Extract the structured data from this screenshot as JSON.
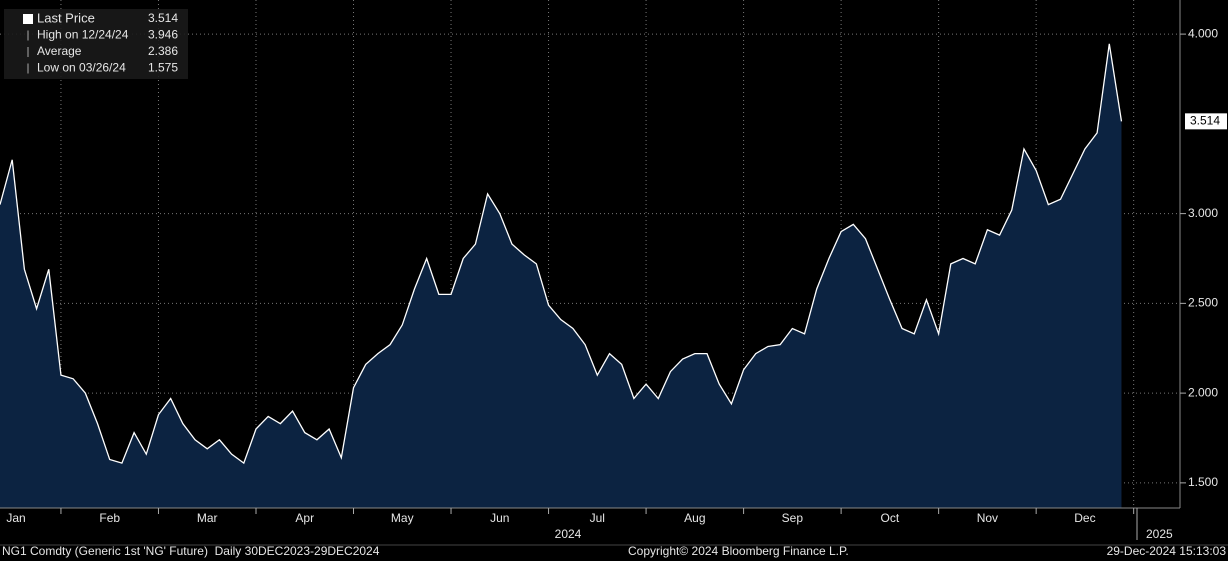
{
  "chart_data": {
    "type": "area",
    "series": [
      {
        "name": "Last Price",
        "color": "#ffffff",
        "fill": "#0c2341",
        "values": [
          3.05,
          3.3,
          2.69,
          2.47,
          2.69,
          2.1,
          2.08,
          2.0,
          1.83,
          1.63,
          1.61,
          1.78,
          1.66,
          1.88,
          1.97,
          1.83,
          1.74,
          1.69,
          1.74,
          1.66,
          1.61,
          1.8,
          1.87,
          1.83,
          1.9,
          1.78,
          1.74,
          1.8,
          1.64,
          2.03,
          2.16,
          2.22,
          2.27,
          2.38,
          2.58,
          2.75,
          2.55,
          2.55,
          2.75,
          2.83,
          3.11,
          3.0,
          2.83,
          2.77,
          2.72,
          2.49,
          2.41,
          2.36,
          2.27,
          2.1,
          2.22,
          2.16,
          1.97,
          2.05,
          1.97,
          2.12,
          2.19,
          2.22,
          2.22,
          2.05,
          1.94,
          2.13,
          2.22,
          2.26,
          2.27,
          2.36,
          2.33,
          2.58,
          2.75,
          2.9,
          2.94,
          2.86,
          2.69,
          2.52,
          2.36,
          2.33,
          2.52,
          2.33,
          2.72,
          2.75,
          2.72,
          2.91,
          2.88,
          3.02,
          3.36,
          3.24,
          3.05,
          3.08,
          3.22,
          3.36,
          3.45,
          3.946,
          3.514
        ]
      }
    ],
    "categories": [
      null,
      "Jan",
      null,
      null,
      null,
      null,
      null,
      null,
      null,
      "Feb",
      null,
      null,
      null,
      null,
      null,
      null,
      null,
      "Mar",
      null,
      null,
      null,
      null,
      null,
      null,
      null,
      "Apr",
      null,
      null,
      null,
      null,
      null,
      null,
      null,
      "May",
      null,
      null,
      null,
      null,
      null,
      null,
      null,
      "Jun",
      null,
      null,
      null,
      null,
      null,
      null,
      null,
      "Jul",
      null,
      null,
      null,
      null,
      null,
      null,
      null,
      "Aug",
      null,
      null,
      null,
      null,
      null,
      null,
      null,
      "Sep",
      null,
      null,
      null,
      null,
      null,
      null,
      null,
      "Oct",
      null,
      null,
      null,
      null,
      null,
      null,
      null,
      "Nov",
      null,
      null,
      null,
      null,
      null,
      null,
      null,
      "Dec",
      null,
      null,
      null
    ],
    "years": [
      "2024",
      "2025"
    ],
    "ylim": [
      1.36,
      4.19
    ],
    "yticks": [
      {
        "value": 1.5,
        "label": "1.500"
      },
      {
        "value": 2,
        "label": "2.000"
      },
      {
        "value": 2.5,
        "label": "2.500"
      },
      {
        "value": 3,
        "label": "3.000"
      },
      {
        "value": 4,
        "label": "4.000"
      }
    ],
    "grid": true,
    "legend": {
      "items": [
        {
          "label": "Last Price",
          "value": 3.514
        },
        {
          "label": "High on 12/24/24",
          "value": 3.946
        },
        {
          "label": "Average",
          "value": 2.386
        },
        {
          "label": "Low on 03/26/24",
          "value": 1.575
        }
      ]
    },
    "footer": {
      "left": "NG1 Comdty (Generic 1st 'NG' Future)  Daily 30DEC2023-29DEC2024",
      "center": "Copyright© 2024 Bloomberg Finance L.P.",
      "right": "29-Dec-2024 15:13:03"
    }
  }
}
